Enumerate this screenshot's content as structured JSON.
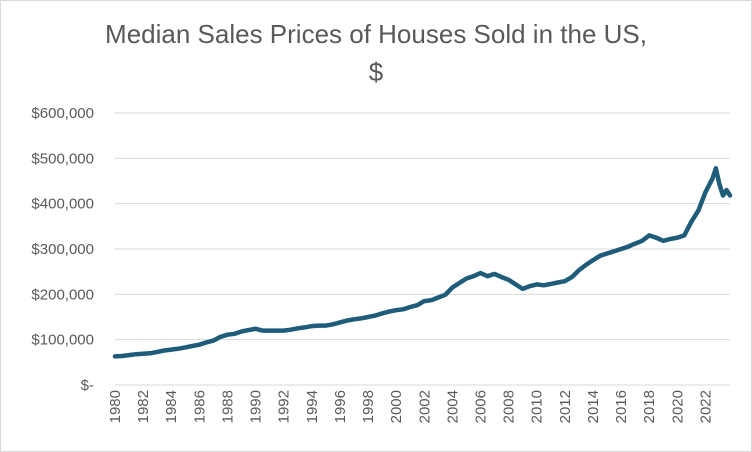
{
  "chart_data": {
    "type": "line",
    "title_lines": [
      "Median Sales Prices of Houses Sold in the US,",
      "$"
    ],
    "title": "Median Sales Prices of Houses Sold in the US, $",
    "xlabel": "",
    "ylabel": "",
    "ylim": [
      0,
      600000
    ],
    "xlim": [
      1980,
      2023.75
    ],
    "grid": true,
    "legend": "none",
    "line_color": "#1f5c7a",
    "grid_color": "#d9d9d9",
    "y_ticks": [
      {
        "value": 0,
        "label": "$-"
      },
      {
        "value": 100000,
        "label": "$100,000"
      },
      {
        "value": 200000,
        "label": "$200,000"
      },
      {
        "value": 300000,
        "label": "$300,000"
      },
      {
        "value": 400000,
        "label": "$400,000"
      },
      {
        "value": 500000,
        "label": "$500,000"
      },
      {
        "value": 600000,
        "label": "$600,000"
      }
    ],
    "x_ticks": [
      {
        "value": 1980,
        "label": "1980"
      },
      {
        "value": 1982,
        "label": "1982"
      },
      {
        "value": 1984,
        "label": "1984"
      },
      {
        "value": 1986,
        "label": "1986"
      },
      {
        "value": 1988,
        "label": "1988"
      },
      {
        "value": 1990,
        "label": "1990"
      },
      {
        "value": 1992,
        "label": "1992"
      },
      {
        "value": 1994,
        "label": "1994"
      },
      {
        "value": 1996,
        "label": "1996"
      },
      {
        "value": 1998,
        "label": "1998"
      },
      {
        "value": 2000,
        "label": "2000"
      },
      {
        "value": 2002,
        "label": "2002"
      },
      {
        "value": 2004,
        "label": "2004"
      },
      {
        "value": 2006,
        "label": "2006"
      },
      {
        "value": 2008,
        "label": "2008"
      },
      {
        "value": 2010,
        "label": "2010"
      },
      {
        "value": 2012,
        "label": "2012"
      },
      {
        "value": 2014,
        "label": "2014"
      },
      {
        "value": 2016,
        "label": "2016"
      },
      {
        "value": 2018,
        "label": "2018"
      },
      {
        "value": 2020,
        "label": "2020"
      },
      {
        "value": 2022,
        "label": "2022"
      }
    ],
    "series": [
      {
        "name": "Median Sales Price",
        "x": [
          1980,
          1980.5,
          1981,
          1981.5,
          1982,
          1982.5,
          1983,
          1983.5,
          1984,
          1984.5,
          1985,
          1985.5,
          1986,
          1986.5,
          1987,
          1987.5,
          1988,
          1988.5,
          1989,
          1989.5,
          1990,
          1990.5,
          1991,
          1991.5,
          1992,
          1992.5,
          1993,
          1993.5,
          1994,
          1994.5,
          1995,
          1995.5,
          1996,
          1996.5,
          1997,
          1997.5,
          1998,
          1998.5,
          1999,
          1999.5,
          2000,
          2000.5,
          2001,
          2001.5,
          2002,
          2002.5,
          2003,
          2003.5,
          2004,
          2004.5,
          2005,
          2005.5,
          2006,
          2006.5,
          2007,
          2007.5,
          2008,
          2008.5,
          2009,
          2009.5,
          2010,
          2010.5,
          2011,
          2011.5,
          2012,
          2012.5,
          2013,
          2013.5,
          2014,
          2014.5,
          2015,
          2015.5,
          2016,
          2016.5,
          2017,
          2017.5,
          2018,
          2018.5,
          2019,
          2019.5,
          2020,
          2020.5,
          2021,
          2021.5,
          2022,
          2022.25,
          2022.5,
          2022.75,
          2023,
          2023.25,
          2023.5,
          2023.75
        ],
        "values": [
          63000,
          64000,
          66000,
          68000,
          69000,
          70000,
          73000,
          76000,
          78000,
          80000,
          83000,
          86000,
          89000,
          94000,
          98000,
          106000,
          111000,
          113000,
          118000,
          121000,
          124000,
          120000,
          120000,
          120000,
          120000,
          122000,
          125000,
          127000,
          130000,
          131000,
          131000,
          134000,
          138000,
          142000,
          145000,
          147000,
          150000,
          153000,
          158000,
          162000,
          165000,
          167000,
          172000,
          176000,
          185000,
          187000,
          193000,
          199000,
          215000,
          225000,
          235000,
          240000,
          247000,
          240000,
          245000,
          238000,
          232000,
          222000,
          212000,
          218000,
          222000,
          220000,
          223000,
          226000,
          229000,
          238000,
          253000,
          265000,
          275000,
          285000,
          290000,
          295000,
          300000,
          305000,
          312000,
          318000,
          330000,
          325000,
          318000,
          322000,
          325000,
          330000,
          360000,
          385000,
          425000,
          440000,
          455000,
          478000,
          442000,
          418000,
          430000,
          418000
        ]
      }
    ]
  }
}
